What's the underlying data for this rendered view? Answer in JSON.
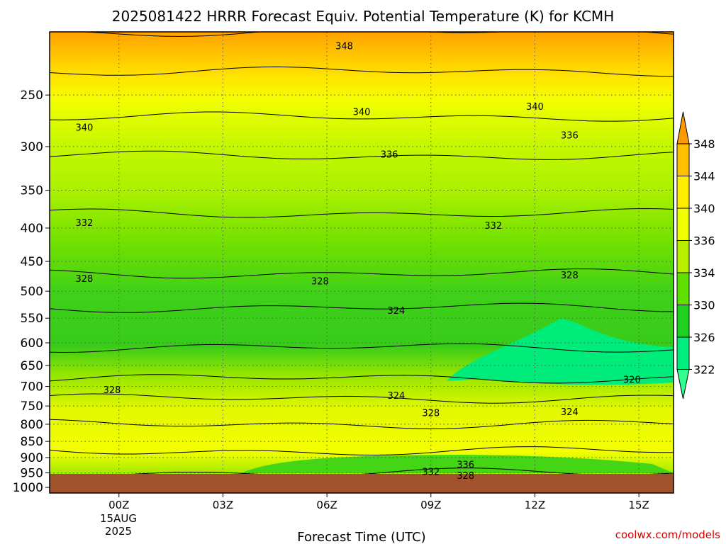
{
  "chart_data": {
    "type": "heatmap",
    "title": "2025081422 HRRR Forecast Equiv. Potential Temperature (K) for KCMH",
    "xlabel": "Forecast Time (UTC)",
    "ylabel": "",
    "watermark": "coolwx.com/models",
    "x_ticks": [
      "00Z",
      "03Z",
      "06Z",
      "09Z",
      "12Z",
      "15Z"
    ],
    "x_tick_hours": [
      0,
      3,
      6,
      9,
      12,
      15
    ],
    "x_date_lines": [
      "15AUG",
      "2025"
    ],
    "xlim_hours": [
      -2,
      16
    ],
    "y_ticks": [
      250,
      300,
      350,
      400,
      450,
      500,
      550,
      600,
      650,
      700,
      750,
      800,
      850,
      900,
      950,
      1000
    ],
    "ylim_hPa": [
      1020,
      200
    ],
    "y_scale": "log-pressure",
    "grid": "dotted",
    "colorbar": {
      "labels": [
        348,
        344,
        340,
        336,
        334,
        330,
        326,
        322
      ],
      "colors": [
        "#ff9900",
        "#ffc000",
        "#ffee00",
        "#f0ff00",
        "#b8f000",
        "#60e000",
        "#20d020",
        "#00ee80",
        "#30ff90"
      ]
    },
    "theta_e_profile": [
      {
        "p": 200,
        "v": 350
      },
      {
        "p": 230,
        "v": 345
      },
      {
        "p": 270,
        "v": 340
      },
      {
        "p": 310,
        "v": 336
      },
      {
        "p": 380,
        "v": 332
      },
      {
        "p": 470,
        "v": 328
      },
      {
        "p": 530,
        "v": 325
      },
      {
        "p": 610,
        "v": 323
      },
      {
        "p": 680,
        "v": 324
      },
      {
        "p": 730,
        "v": 328
      },
      {
        "p": 800,
        "v": 335
      },
      {
        "p": 880,
        "v": 339
      },
      {
        "p": 950,
        "v": 336
      },
      {
        "p": 990,
        "v": 328
      }
    ],
    "contours": [
      {
        "label": "348",
        "hour": 6.5,
        "p": 210
      },
      {
        "label": "340",
        "hour": -1,
        "p": 280
      },
      {
        "label": "340",
        "hour": 7,
        "p": 265
      },
      {
        "label": "340",
        "hour": 12,
        "p": 260
      },
      {
        "label": "336",
        "hour": 7.8,
        "p": 308
      },
      {
        "label": "336",
        "hour": 13,
        "p": 288
      },
      {
        "label": "332",
        "hour": -1,
        "p": 392
      },
      {
        "label": "332",
        "hour": 10.8,
        "p": 396
      },
      {
        "label": "328",
        "hour": -1,
        "p": 478
      },
      {
        "label": "328",
        "hour": 5.8,
        "p": 482
      },
      {
        "label": "328",
        "hour": 13,
        "p": 472
      },
      {
        "label": "324",
        "hour": 8,
        "p": 535
      },
      {
        "label": "328",
        "hour": -0.2,
        "p": 708
      },
      {
        "label": "324",
        "hour": 8,
        "p": 722
      },
      {
        "label": "328",
        "hour": 9,
        "p": 768
      },
      {
        "label": "324",
        "hour": 13,
        "p": 765
      },
      {
        "label": "320",
        "hour": 14.8,
        "p": 683
      },
      {
        "label": "336",
        "hour": 10,
        "p": 922
      },
      {
        "label": "332",
        "hour": 9,
        "p": 945
      },
      {
        "label": "328",
        "hour": 10,
        "p": 958
      }
    ]
  }
}
